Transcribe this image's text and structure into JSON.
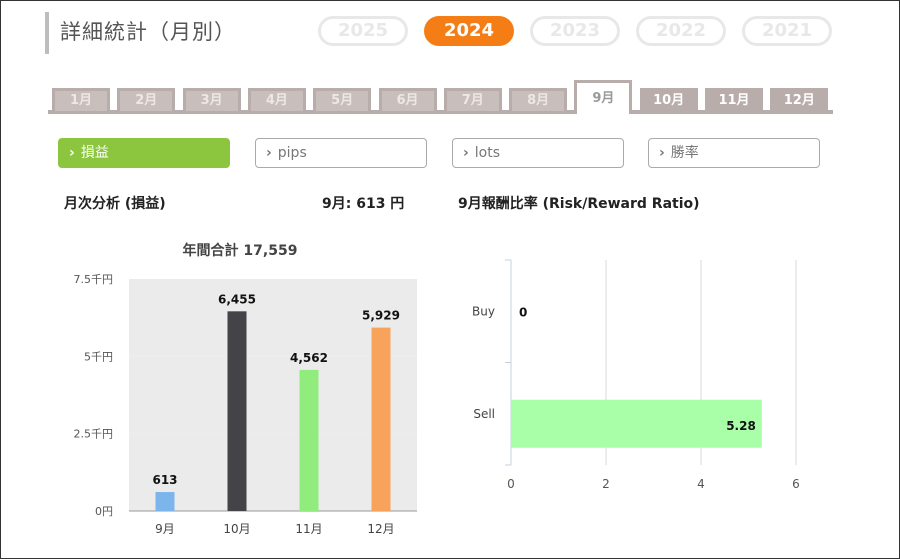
{
  "title": "詳細統計（月別）",
  "years": [
    {
      "label": "2025",
      "active": false
    },
    {
      "label": "2024",
      "active": true
    },
    {
      "label": "2023",
      "active": false
    },
    {
      "label": "2022",
      "active": false
    },
    {
      "label": "2021",
      "active": false
    }
  ],
  "months": [
    {
      "label": "1月",
      "state": "disabled"
    },
    {
      "label": "2月",
      "state": "disabled"
    },
    {
      "label": "3月",
      "state": "disabled"
    },
    {
      "label": "4月",
      "state": "disabled"
    },
    {
      "label": "5月",
      "state": "disabled"
    },
    {
      "label": "6月",
      "state": "disabled"
    },
    {
      "label": "7月",
      "state": "disabled"
    },
    {
      "label": "8月",
      "state": "disabled"
    },
    {
      "label": "9月",
      "state": "active"
    },
    {
      "label": "10月",
      "state": "enabled"
    },
    {
      "label": "11月",
      "state": "enabled"
    },
    {
      "label": "12月",
      "state": "enabled"
    }
  ],
  "metrics": [
    {
      "label": "損益",
      "active": true
    },
    {
      "label": "pips",
      "active": false
    },
    {
      "label": "lots",
      "active": false
    },
    {
      "label": "勝率",
      "active": false
    }
  ],
  "left_header": {
    "heading": "月次分析 (損益)",
    "summary": "9月:  613 円"
  },
  "right_header": {
    "heading": "9月報酬比率 (Risk/Reward Ratio)"
  },
  "colors": {
    "accent": "#f47d16",
    "active_metric": "#8cc63e"
  },
  "chart_data": [
    {
      "type": "bar",
      "title": "年間合計 17,559",
      "categories": [
        "9月",
        "10月",
        "11月",
        "12月"
      ],
      "values": [
        613,
        6455,
        4562,
        5929
      ],
      "data_labels": [
        "613",
        "6,455",
        "4,562",
        "5,929"
      ],
      "bar_colors": [
        "#7cb5ec",
        "#434348",
        "#90ed7d",
        "#f7a35c"
      ],
      "y_ticks": [
        0,
        2500,
        5000,
        7500
      ],
      "y_tick_labels": [
        "0円",
        "2.5千円",
        "5千円",
        "7.5千円"
      ],
      "ylim": [
        0,
        7500
      ],
      "grid": "alternating bands"
    },
    {
      "type": "bar",
      "orientation": "horizontal",
      "categories": [
        "Buy",
        "Sell"
      ],
      "values": [
        0,
        5.28
      ],
      "data_labels": [
        "0",
        "5.28"
      ],
      "bar_color": "#a8ffa8",
      "x_ticks": [
        0,
        2,
        4,
        6
      ],
      "xlim": [
        0,
        6
      ],
      "grid": "vertical lines"
    }
  ]
}
